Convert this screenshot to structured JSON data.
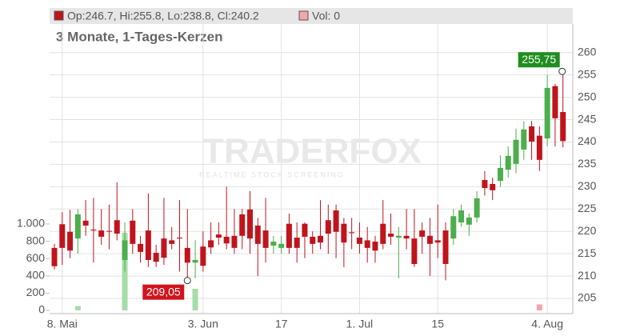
{
  "chart_data": {
    "type": "candlestick",
    "header_ohlc": "Op:246.7, Hi:255.8, Lo:238.8, Cl:240.2",
    "header_volume": "Vol: 0",
    "subtitle": "3 Monate, 1-Tages-Kerzen",
    "watermark": "TRADERFOX",
    "watermark_sub": "REALTIME STOCK SCREENING",
    "annotations": [
      "255,75",
      "209,05"
    ],
    "up_color": "#4cae4c",
    "down_color": "#c0141c",
    "up_volume_color": "#a6dca6",
    "down_volume_color": "#f2a6ae",
    "categories": [
      null,
      "8. Mai",
      null,
      null,
      null,
      null,
      null,
      null,
      null,
      null,
      null,
      null,
      null,
      null,
      null,
      null,
      null,
      null,
      null,
      "3. Jun",
      null,
      null,
      null,
      null,
      null,
      null,
      null,
      null,
      null,
      "17",
      null,
      null,
      null,
      null,
      null,
      null,
      null,
      null,
      null,
      "1. Jul",
      null,
      null,
      null,
      null,
      null,
      null,
      null,
      null,
      null,
      "15",
      null,
      null,
      null,
      null,
      null,
      null,
      null,
      null,
      null,
      null,
      null,
      null,
      null,
      "4. Aug",
      null,
      null
    ],
    "open": [
      216.3,
      221.6,
      219.9,
      218.4,
      222.4,
      220.4,
      220.2,
      220.1,
      222.5,
      213.6,
      222.4,
      217.2,
      220.2,
      215.2,
      218.4,
      218,
      218.6,
      216.3,
      213,
      216.6,
      218,
      219.3,
      218.8,
      219,
      223.8,
      224.9,
      221.3,
      220.2,
      216.8,
      216.3,
      221.7,
      218.6,
      221.7,
      218.8,
      219,
      222.5,
      224.7,
      221.7,
      219.8,
      218.6,
      218,
      217.7,
      221.7,
      219.5,
      218.6,
      219,
      218.4,
      220.2,
      219,
      218,
      220.2,
      218.4,
      222,
      221.5,
      223.1,
      231.5,
      230.6,
      231.3,
      233.8,
      235.1,
      238.3,
      243.5,
      241.4,
      240.8,
      252.5,
      246.7
    ],
    "high": [
      217.2,
      224.3,
      224.8,
      225,
      227,
      227.5,
      225,
      226,
      231,
      222,
      225,
      219,
      228.5,
      217,
      227.5,
      221,
      227,
      225,
      218,
      220,
      222,
      222,
      230,
      225,
      225,
      229,
      223,
      227.5,
      219,
      219,
      224,
      222,
      222,
      220,
      227,
      226,
      226,
      223,
      223,
      222,
      221,
      219,
      227,
      224,
      221,
      225,
      225,
      222,
      223,
      226,
      222,
      225,
      226,
      224,
      229,
      233.5,
      232,
      237,
      239,
      243,
      244.6,
      244.7,
      243.5,
      255,
      253,
      255.8
    ],
    "low": [
      211.5,
      212.5,
      214,
      215,
      219,
      213,
      217,
      216,
      218,
      211,
      215,
      213,
      212,
      212,
      212.5,
      216,
      211,
      209,
      209.5,
      211,
      215,
      217,
      216,
      215,
      216,
      215,
      210,
      213,
      215,
      215,
      215,
      213,
      214,
      215,
      216,
      215,
      214,
      212,
      216,
      215,
      213,
      213,
      216,
      217,
      209.5,
      216,
      212,
      215,
      210,
      214,
      209.05,
      217,
      221,
      219,
      222,
      228,
      227,
      230,
      232,
      233,
      236,
      236,
      233.5,
      239,
      239,
      238.8
    ],
    "close": [
      212.2,
      216.3,
      215.7,
      223.8,
      221.3,
      220.2,
      218.8,
      220,
      219.5,
      218,
      217.2,
      215.4,
      213.6,
      213.2,
      214.1,
      217.2,
      218.4,
      213,
      213.6,
      212.3,
      216.4,
      218.6,
      217.3,
      216.3,
      219,
      218.4,
      217.2,
      216.3,
      217.7,
      217.2,
      216.3,
      216.3,
      218.8,
      217.2,
      217.5,
      219.5,
      219.9,
      217.5,
      219.6,
      217.2,
      216.3,
      215.7,
      217.2,
      218.8,
      219,
      218.4,
      212.7,
      218.8,
      217.2,
      217.5,
      212.7,
      223.4,
      224.7,
      223.1,
      227.4,
      229.7,
      229.2,
      234.2,
      236.9,
      240.5,
      242.8,
      240.1,
      236,
      252.1,
      245.3,
      240.2
    ],
    "volume": [
      0,
      0,
      0,
      50,
      0,
      0,
      0,
      0,
      0,
      900,
      0,
      0,
      0,
      0,
      0,
      0,
      0,
      0,
      250,
      0,
      0,
      0,
      0,
      0,
      0,
      0,
      0,
      0,
      0,
      0,
      0,
      0,
      0,
      0,
      0,
      0,
      0,
      0,
      0,
      0,
      0,
      0,
      0,
      0,
      0,
      0,
      0,
      0,
      0,
      0,
      0,
      0,
      0,
      0,
      0,
      0,
      0,
      0,
      0,
      0,
      0,
      0,
      70,
      0,
      0,
      0
    ],
    "ylim": [
      201.6,
      266.4
    ],
    "yticks": [
      205,
      210,
      215,
      220,
      225,
      230,
      235,
      240,
      245,
      250,
      255,
      260
    ],
    "y2lim": [
      -37,
      3315
    ],
    "y2ticks": [
      0,
      200,
      400,
      600,
      800,
      {
        "value": 1000,
        "label": "1.000"
      }
    ]
  }
}
